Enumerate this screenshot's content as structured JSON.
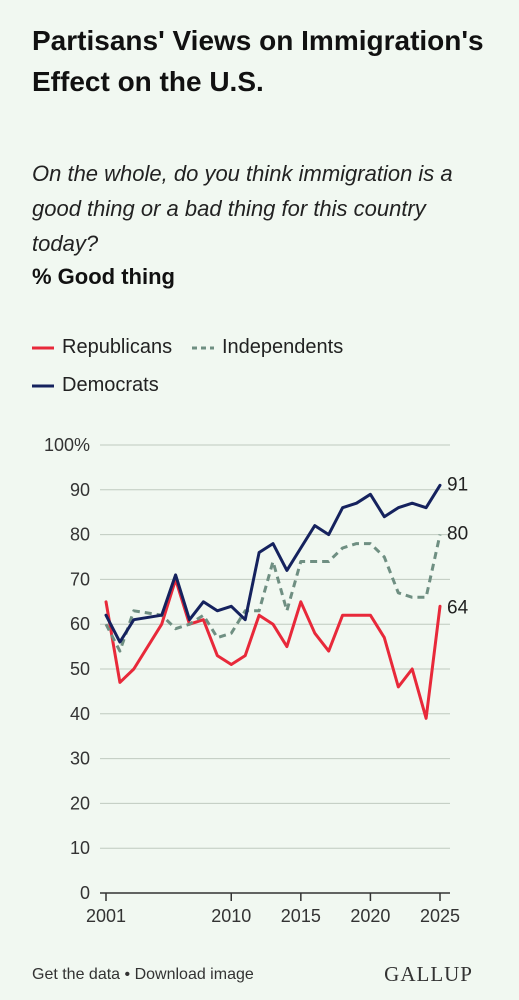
{
  "header": {
    "title": "Partisans' Views on Immigration's Effect on the U.S.",
    "subtitle": "On the whole, do you think immigration is a good thing or a bad thing for this country today?",
    "measure": "% Good thing"
  },
  "footer": {
    "get_data": "Get the data",
    "separator": "•",
    "download": "Download image",
    "logo": "GALLUP"
  },
  "colors": {
    "republicans": "#e8293a",
    "independents": "#6f8f82",
    "democrats": "#15225e",
    "grid": "#bfcabf",
    "axis": "#333333"
  },
  "chart_data": {
    "type": "line",
    "title": "Partisans' Views on Immigration's Effect on the U.S.",
    "subtitle": "On the whole, do you think immigration is a good thing or a bad thing for this country today?",
    "ylabel": "% Good thing",
    "xlabel": "",
    "xlim": [
      2001,
      2025
    ],
    "ylim": [
      0,
      100
    ],
    "x_ticks": [
      2001,
      2010,
      2015,
      2020,
      2025
    ],
    "x_tick_labels": [
      "2001",
      "2010",
      "2015",
      "2020",
      "2025"
    ],
    "y_ticks": [
      0,
      10,
      20,
      30,
      40,
      50,
      60,
      70,
      80,
      90,
      100
    ],
    "y_tick_labels": [
      "0",
      "10",
      "20",
      "30",
      "40",
      "50",
      "60",
      "70",
      "80",
      "90",
      "100%"
    ],
    "grid": "horizontal",
    "legend_position": "top-left",
    "x": [
      2001,
      2002,
      2003,
      2005,
      2006,
      2007,
      2008,
      2009,
      2010,
      2011,
      2012,
      2013,
      2014,
      2015,
      2016,
      2017,
      2018,
      2019,
      2020,
      2021,
      2022,
      2023,
      2024,
      2025
    ],
    "series": [
      {
        "name": "Republicans",
        "style": "solid",
        "end_label": "64",
        "values": [
          65,
          47,
          50,
          60,
          70,
          60,
          61,
          53,
          51,
          53,
          62,
          60,
          55,
          65,
          58,
          54,
          62,
          62,
          62,
          57,
          46,
          50,
          39,
          64
        ]
      },
      {
        "name": "Independents",
        "style": "dashed",
        "end_label": "80",
        "values": [
          60,
          54,
          63,
          62,
          59,
          60,
          62,
          57,
          58,
          63,
          63,
          74,
          63,
          74,
          74,
          74,
          77,
          78,
          78,
          75,
          67,
          66,
          66,
          80
        ]
      },
      {
        "name": "Democrats",
        "style": "solid",
        "end_label": "91",
        "values": [
          62,
          56,
          61,
          62,
          71,
          61,
          65,
          63,
          64,
          61,
          76,
          78,
          72,
          77,
          82,
          80,
          86,
          87,
          89,
          84,
          86,
          87,
          86,
          91
        ]
      }
    ]
  }
}
